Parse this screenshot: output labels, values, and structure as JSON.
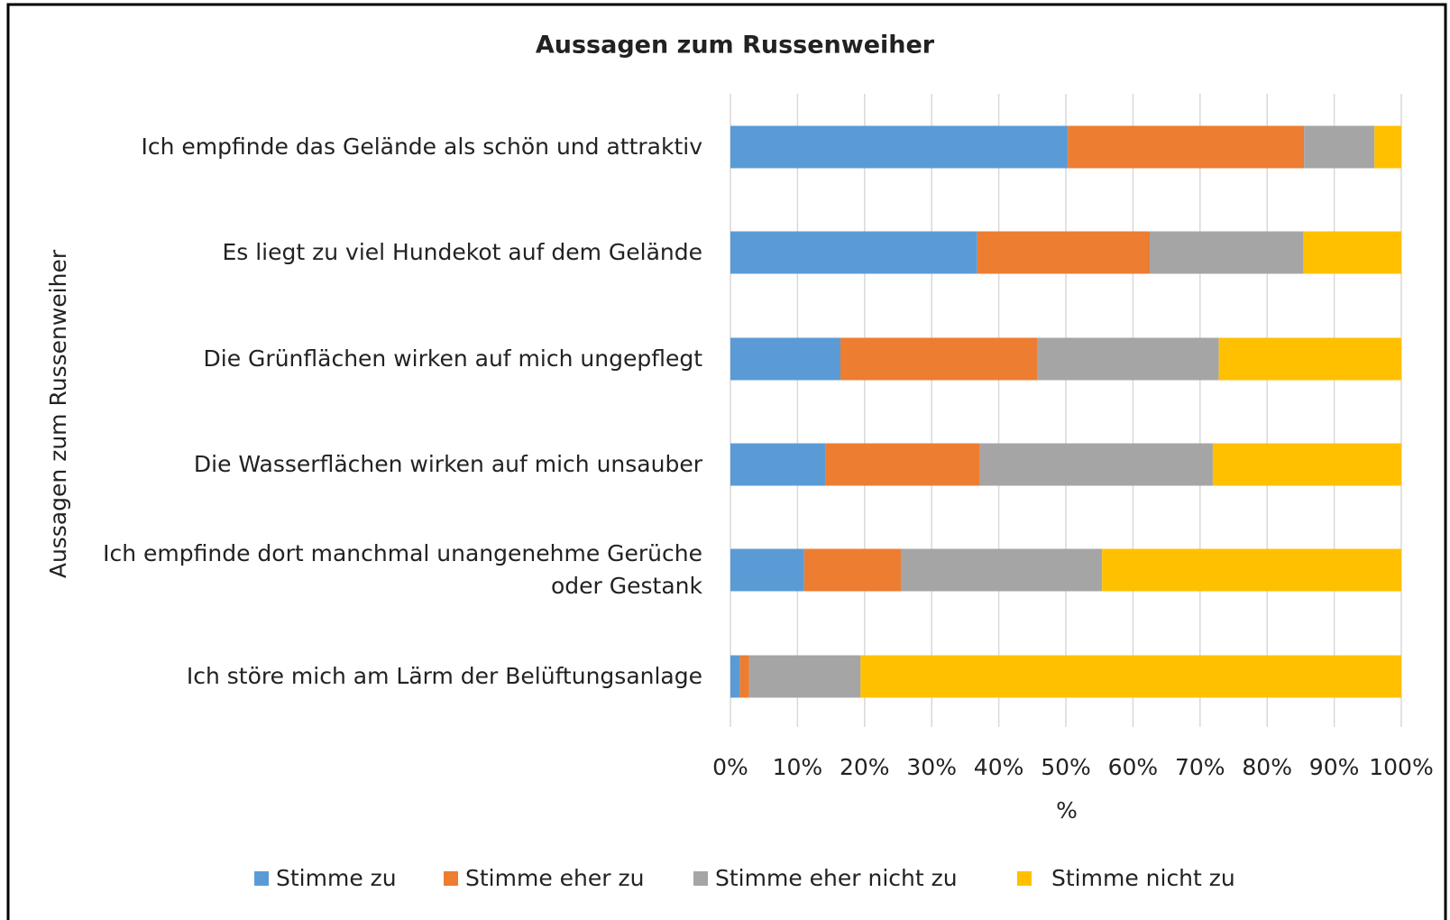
{
  "chart_data": {
    "type": "stacked_barh",
    "title": "Aussagen zum Russenweiher",
    "x_label": "%",
    "y_label": "Aussagen zum Russenweiher",
    "categories": [
      "Ich empfinde das Gelände als schön und attraktiv",
      "Es liegt zu viel Hundekot auf dem Gelände",
      "Die Grünflächen wirken auf mich ungepflegt",
      "Die Wasserflächen wirken auf mich unsauber",
      "Ich empfinde dort manchmal unangenehme Gerüche oder Gestank",
      "Ich störe mich am Lärm der Belüftungsanlage"
    ],
    "series": [
      {
        "name": "Stimme zu",
        "color": "#5b9bd5",
        "values": [
          50.3,
          36.8,
          16.4,
          14.2,
          11.0,
          1.4
        ]
      },
      {
        "name": "Stimme eher zu",
        "color": "#ed7d31",
        "values": [
          35.2,
          25.7,
          29.4,
          23.0,
          14.4,
          1.4
        ]
      },
      {
        "name": "Stimme eher nicht zu",
        "color": "#a5a5a5",
        "values": [
          10.5,
          22.9,
          27.0,
          34.7,
          30.0,
          16.6
        ]
      },
      {
        "name": "Stimme nicht zu",
        "color": "#ffc000",
        "values": [
          4.0,
          14.6,
          27.2,
          28.1,
          44.6,
          80.6
        ]
      }
    ],
    "xlim": [
      0,
      100
    ],
    "xticks": [
      {
        "value": 0,
        "label": "0%"
      },
      {
        "value": 10,
        "label": "10%"
      },
      {
        "value": 20,
        "label": "20%"
      },
      {
        "value": 30,
        "label": "30%"
      },
      {
        "value": 40,
        "label": "40%"
      },
      {
        "value": 50,
        "label": "50%"
      },
      {
        "value": 60,
        "label": "60%"
      },
      {
        "value": 70,
        "label": "70%"
      },
      {
        "value": 80,
        "label": "80%"
      },
      {
        "value": 90,
        "label": "90%"
      },
      {
        "value": 100,
        "label": "100%"
      }
    ],
    "grid": true,
    "legend": "bottom"
  }
}
